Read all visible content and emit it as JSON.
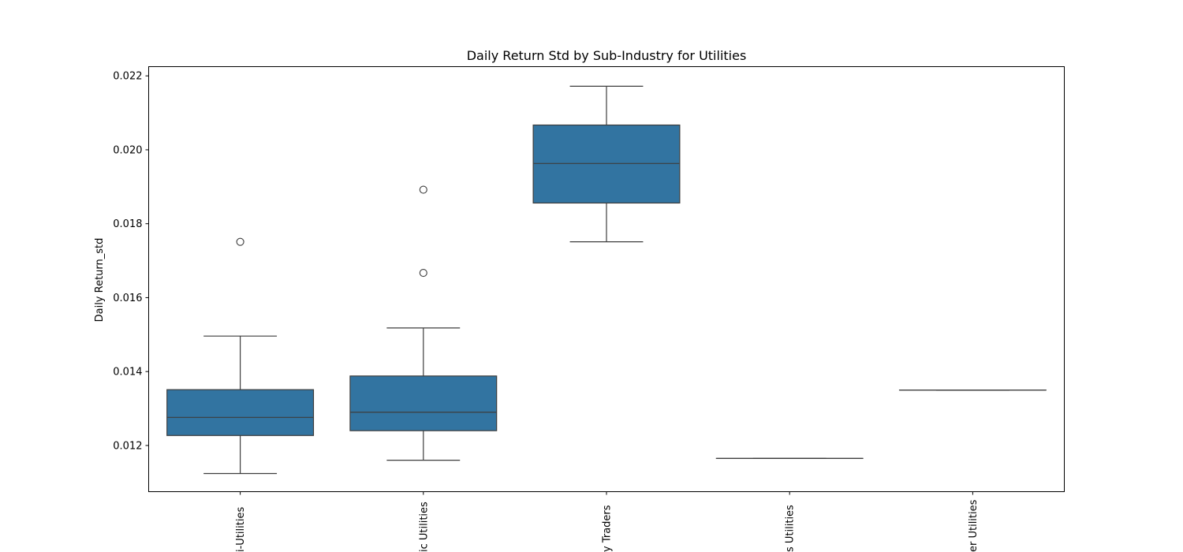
{
  "chart_data": {
    "type": "box",
    "title": "Daily Return Std by Sub-Industry for Utilities",
    "xlabel": "",
    "ylabel": "Daily Return_std",
    "ylim": [
      0.01075,
      0.02225
    ],
    "yticks": [
      "0.012",
      "0.014",
      "0.016",
      "0.018",
      "0.020",
      "0.022"
    ],
    "ytick_values": [
      0.012,
      0.014,
      0.016,
      0.018,
      0.02,
      0.022
    ],
    "categories": [
      "Multi-Utilities",
      "Electric Utilities",
      "Independent Power Producers & Energy Traders",
      "Gas Utilities",
      "Water Utilities"
    ],
    "category_labels_visible": [
      "i-Utilities",
      "ic Utilities",
      "y Traders",
      "s Utilities",
      "er Utilities"
    ],
    "box_color": "#3274a1",
    "line_color": "#3d3d3d",
    "boxes": [
      {
        "category": "Multi-Utilities",
        "whisker_low": 0.01124,
        "q1": 0.01227,
        "median": 0.01276,
        "q3": 0.01351,
        "whisker_high": 0.01496,
        "outliers": [
          0.01751
        ]
      },
      {
        "category": "Electric Utilities",
        "whisker_low": 0.0116,
        "q1": 0.0124,
        "median": 0.0129,
        "q3": 0.01388,
        "whisker_high": 0.01518,
        "outliers": [
          0.01667,
          0.01892
        ]
      },
      {
        "category": "Independent Power Producers & Energy Traders",
        "whisker_low": 0.01751,
        "q1": 0.01856,
        "median": 0.01963,
        "q3": 0.02067,
        "whisker_high": 0.02172,
        "outliers": []
      },
      {
        "category": "Gas Utilities",
        "whisker_low": 0.01165,
        "q1": 0.01165,
        "median": 0.01165,
        "q3": 0.01165,
        "whisker_high": 0.01165,
        "outliers": []
      },
      {
        "category": "Water Utilities",
        "whisker_low": 0.0135,
        "q1": 0.0135,
        "median": 0.0135,
        "q3": 0.0135,
        "whisker_high": 0.0135,
        "outliers": []
      }
    ],
    "grid": false,
    "legend": "none"
  }
}
